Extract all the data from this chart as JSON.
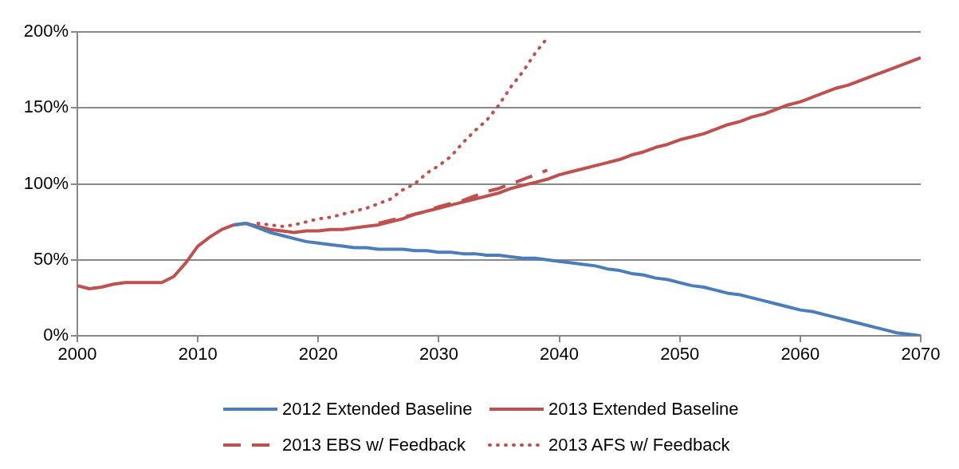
{
  "chart_data": {
    "type": "line",
    "xlim": [
      2000,
      2070
    ],
    "xticks": [
      2000,
      2010,
      2020,
      2030,
      2040,
      2050,
      2060,
      2070
    ],
    "ylim": [
      0,
      200
    ],
    "yticks": [
      {
        "value": 0,
        "label": "0%"
      },
      {
        "value": 50,
        "label": "50%"
      },
      {
        "value": 100,
        "label": "100%"
      },
      {
        "value": 150,
        "label": "150%"
      },
      {
        "value": 200,
        "label": "200%"
      }
    ],
    "grid": "y",
    "legend": "bottom",
    "marker": "none",
    "series": [
      {
        "name": "2012 Extended Baseline",
        "color": "#4a7ebb",
        "line_style": "solid",
        "x": [
          2013,
          2014,
          2015,
          2016,
          2017,
          2018,
          2019,
          2020,
          2021,
          2022,
          2023,
          2024,
          2025,
          2026,
          2027,
          2028,
          2029,
          2030,
          2031,
          2032,
          2033,
          2034,
          2035,
          2036,
          2037,
          2038,
          2039,
          2040,
          2041,
          2042,
          2043,
          2044,
          2045,
          2046,
          2047,
          2048,
          2049,
          2050,
          2051,
          2052,
          2053,
          2054,
          2055,
          2056,
          2057,
          2058,
          2059,
          2060,
          2061,
          2062,
          2063,
          2064,
          2065,
          2066,
          2067,
          2068,
          2069,
          2070
        ],
        "values": [
          73,
          74,
          71,
          68,
          66,
          64,
          62,
          61,
          60,
          59,
          58,
          58,
          57,
          57,
          57,
          56,
          56,
          55,
          55,
          54,
          54,
          53,
          53,
          52,
          51,
          51,
          50,
          49,
          48,
          47,
          46,
          44,
          43,
          41,
          40,
          38,
          37,
          35,
          33,
          32,
          30,
          28,
          27,
          25,
          23,
          21,
          19,
          17,
          16,
          14,
          12,
          10,
          8,
          6,
          4,
          2,
          1,
          0
        ]
      },
      {
        "name": "2013 Extended Baseline",
        "color": "#c0504d",
        "line_style": "solid",
        "x": [
          2000,
          2001,
          2002,
          2003,
          2004,
          2005,
          2006,
          2007,
          2008,
          2009,
          2010,
          2011,
          2012,
          2013,
          2014,
          2015,
          2016,
          2017,
          2018,
          2019,
          2020,
          2021,
          2022,
          2023,
          2024,
          2025,
          2026,
          2027,
          2028,
          2029,
          2030,
          2031,
          2032,
          2033,
          2034,
          2035,
          2036,
          2037,
          2038,
          2039,
          2040,
          2041,
          2042,
          2043,
          2044,
          2045,
          2046,
          2047,
          2048,
          2049,
          2050,
          2051,
          2052,
          2053,
          2054,
          2055,
          2056,
          2057,
          2058,
          2059,
          2060,
          2061,
          2062,
          2063,
          2064,
          2065,
          2066,
          2067,
          2068,
          2069,
          2070
        ],
        "values": [
          33,
          31,
          32,
          34,
          35,
          35,
          35,
          35,
          39,
          48,
          59,
          65,
          70,
          73,
          74,
          72,
          70,
          69,
          68,
          69,
          69,
          70,
          70,
          71,
          72,
          73,
          75,
          77,
          80,
          82,
          84,
          86,
          88,
          90,
          92,
          94,
          97,
          99,
          101,
          103,
          106,
          108,
          110,
          112,
          114,
          116,
          119,
          121,
          124,
          126,
          129,
          131,
          133,
          136,
          139,
          141,
          144,
          146,
          149,
          152,
          154,
          157,
          160,
          163,
          165,
          168,
          171,
          174,
          177,
          180,
          183
        ]
      },
      {
        "name": "2013 EBS w/ Feedback",
        "color": "#c0504d",
        "line_style": "dashed",
        "x": [
          2025,
          2026,
          2027,
          2028,
          2029,
          2030,
          2031,
          2032,
          2033,
          2034,
          2035,
          2036,
          2037,
          2038,
          2039
        ],
        "values": [
          74,
          76,
          78,
          80,
          82,
          85,
          87,
          89,
          92,
          95,
          97,
          100,
          103,
          106,
          109
        ]
      },
      {
        "name": "2013 AFS w/ Feedback",
        "color": "#c0504d",
        "line_style": "dotted",
        "x": [
          2015,
          2016,
          2017,
          2018,
          2019,
          2020,
          2021,
          2022,
          2023,
          2024,
          2025,
          2026,
          2027,
          2028,
          2029,
          2030,
          2031,
          2032,
          2033,
          2034,
          2035,
          2036,
          2037,
          2038,
          2039
        ],
        "values": [
          74,
          73,
          72,
          73,
          75,
          77,
          78,
          80,
          82,
          84,
          87,
          90,
          96,
          100,
          107,
          112,
          118,
          127,
          135,
          142,
          152,
          164,
          174,
          186,
          196
        ]
      }
    ]
  }
}
